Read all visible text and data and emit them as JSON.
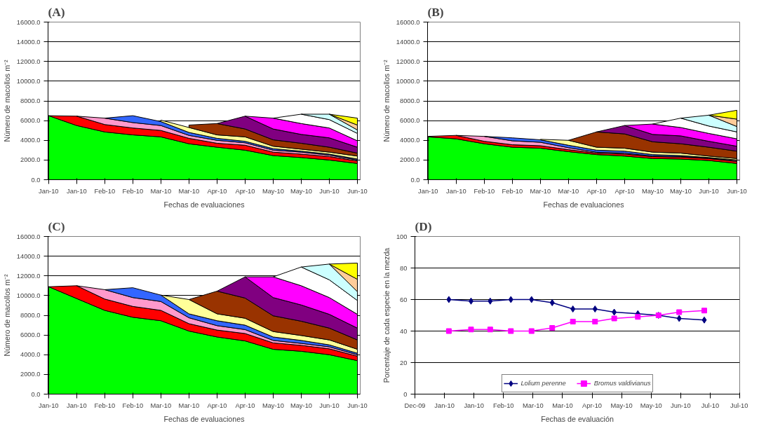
{
  "chart_data": [
    {
      "type": "area",
      "title": "(A)",
      "stacked": true,
      "xlabel": "Fechas de evaluaciones",
      "ylabel": "Número de macollos m⁻²",
      "grid": "y",
      "categories": [
        "Jan-10",
        "Jan-10",
        "Feb-10",
        "Feb-10",
        "Mar-10",
        "Mar-10",
        "Apr-10",
        "Apr-10",
        "May-10",
        "May-10",
        "Jun-10",
        "Jun-10"
      ],
      "ylim": [
        0,
        16000
      ],
      "yticks": [
        {
          "value": 0,
          "label": "0.0"
        },
        {
          "value": 2000,
          "label": "2000.0"
        },
        {
          "value": 4000,
          "label": "4000.0"
        },
        {
          "value": 6000,
          "label": "6000.0"
        },
        {
          "value": 8000,
          "label": "8000.0"
        },
        {
          "value": 10000,
          "label": "10000.0"
        },
        {
          "value": 12000,
          "label": "12000.0"
        },
        {
          "value": 14000,
          "label": "14000.0"
        },
        {
          "value": 16000,
          "label": "16000.0"
        }
      ],
      "series": [
        {
          "color": "#00ff00",
          "values": [
            6500,
            5500,
            4850,
            4550,
            4350,
            3650,
            3300,
            3000,
            2450,
            2250,
            2000,
            1650
          ]
        },
        {
          "color": "#ff0000",
          "values": [
            0,
            950,
            750,
            700,
            650,
            550,
            400,
            500,
            350,
            350,
            350,
            250
          ]
        },
        {
          "color": "#ff99cc",
          "values": [
            null,
            0,
            650,
            550,
            500,
            300,
            300,
            250,
            200,
            200,
            150,
            100
          ]
        },
        {
          "color": "#3366ff",
          "values": [
            null,
            null,
            0,
            700,
            400,
            300,
            200,
            150,
            150,
            100,
            100,
            100
          ]
        },
        {
          "color": "#ffff99",
          "values": [
            null,
            null,
            null,
            null,
            150,
            500,
            350,
            450,
            250,
            200,
            200,
            300
          ]
        },
        {
          "color": "#993300",
          "values": [
            null,
            null,
            null,
            null,
            null,
            250,
            1150,
            800,
            650,
            600,
            500,
            300
          ]
        },
        {
          "color": "#800080",
          "values": [
            null,
            null,
            null,
            null,
            null,
            null,
            0,
            1300,
            1100,
            900,
            950,
            600
          ]
        },
        {
          "color": "#ff00ff",
          "values": [
            null,
            null,
            null,
            null,
            null,
            null,
            null,
            0,
            1100,
            1100,
            1000,
            650
          ]
        },
        {
          "color": "#ffffff",
          "values": [
            null,
            null,
            null,
            null,
            null,
            null,
            null,
            null,
            0,
            950,
            850,
            750
          ]
        },
        {
          "color": "#ccffff",
          "values": [
            null,
            null,
            null,
            null,
            null,
            null,
            null,
            null,
            null,
            0,
            550,
            350
          ]
        },
        {
          "color": "#ffcc99",
          "values": [
            null,
            null,
            null,
            null,
            null,
            null,
            null,
            null,
            null,
            null,
            0,
            500
          ]
        },
        {
          "color": "#ffff00",
          "values": [
            null,
            null,
            null,
            null,
            null,
            null,
            null,
            null,
            null,
            null,
            0,
            700
          ]
        }
      ]
    },
    {
      "type": "area",
      "title": "(B)",
      "stacked": true,
      "xlabel": "Fechas de evaluaciones",
      "ylabel": "Número de macollos m⁻²",
      "grid": "y",
      "categories": [
        "Jan-10",
        "Jan-10",
        "Feb-10",
        "Feb-10",
        "Mar-10",
        "Mar-10",
        "Apr-10",
        "Apr-10",
        "May-10",
        "May-10",
        "Jun-10",
        "Jun-10"
      ],
      "ylim": [
        0,
        16000
      ],
      "yticks": [
        {
          "value": 0,
          "label": "0.0"
        },
        {
          "value": 2000,
          "label": "2000.0"
        },
        {
          "value": 4000,
          "label": "4000.0"
        },
        {
          "value": 6000,
          "label": "6000.0"
        },
        {
          "value": 8000,
          "label": "8000.0"
        },
        {
          "value": 10000,
          "label": "10000.0"
        },
        {
          "value": 12000,
          "label": "12000.0"
        },
        {
          "value": 14000,
          "label": "14000.0"
        },
        {
          "value": 16000,
          "label": "16000.0"
        }
      ],
      "series": [
        {
          "color": "#00ff00",
          "values": [
            4350,
            4150,
            3650,
            3300,
            3200,
            2850,
            2550,
            2400,
            2150,
            2100,
            1950,
            1650
          ]
        },
        {
          "color": "#ff0000",
          "values": [
            50,
            350,
            250,
            250,
            250,
            200,
            150,
            200,
            200,
            200,
            200,
            200
          ]
        },
        {
          "color": "#ff99cc",
          "values": [
            null,
            0,
            500,
            400,
            350,
            200,
            100,
            100,
            50,
            50,
            50,
            100
          ]
        },
        {
          "color": "#3366ff",
          "values": [
            null,
            null,
            0,
            300,
            250,
            250,
            200,
            200,
            150,
            100,
            50,
            50
          ]
        },
        {
          "color": "#ffff99",
          "values": [
            null,
            null,
            null,
            null,
            50,
            500,
            300,
            300,
            250,
            250,
            150,
            150
          ]
        },
        {
          "color": "#993300",
          "values": [
            null,
            null,
            null,
            null,
            null,
            0,
            1550,
            1450,
            1050,
            950,
            900,
            750
          ]
        },
        {
          "color": "#800080",
          "values": [
            null,
            null,
            null,
            null,
            null,
            null,
            0,
            850,
            750,
            800,
            600,
            500
          ]
        },
        {
          "color": "#ff00ff",
          "values": [
            null,
            null,
            null,
            null,
            null,
            null,
            null,
            0,
            1050,
            850,
            800,
            750
          ]
        },
        {
          "color": "#ffffff",
          "values": [
            null,
            null,
            null,
            null,
            null,
            null,
            null,
            null,
            0,
            950,
            750,
            700
          ]
        },
        {
          "color": "#ccffff",
          "values": [
            null,
            null,
            null,
            null,
            null,
            null,
            null,
            null,
            null,
            0,
            1100,
            550
          ]
        },
        {
          "color": "#ffcc99",
          "values": [
            null,
            null,
            null,
            null,
            null,
            null,
            null,
            null,
            null,
            null,
            0,
            750
          ]
        },
        {
          "color": "#ffff00",
          "values": [
            null,
            null,
            null,
            null,
            null,
            null,
            null,
            null,
            null,
            null,
            0,
            900
          ]
        }
      ]
    },
    {
      "type": "area",
      "title": "(C)",
      "stacked": true,
      "xlabel": "Fechas de evaluaciones",
      "ylabel": "Número de macollos m⁻²",
      "grid": "y",
      "categories": [
        "Jan-10",
        "Jan-10",
        "Feb-10",
        "Feb-10",
        "Mar-10",
        "Mar-10",
        "Apr-10",
        "Apr-10",
        "May-10",
        "May-10",
        "Jun-10",
        "Jun-10"
      ],
      "ylim": [
        0,
        16000
      ],
      "yticks": [
        {
          "value": 0,
          "label": "0.0"
        },
        {
          "value": 2000,
          "label": "2000.0"
        },
        {
          "value": 4000,
          "label": "4000.0"
        },
        {
          "value": 6000,
          "label": "6000.0"
        },
        {
          "value": 8000,
          "label": "8000.0"
        },
        {
          "value": 10000,
          "label": "10000.0"
        },
        {
          "value": 12000,
          "label": "12000.0"
        },
        {
          "value": 14000,
          "label": "14000.0"
        },
        {
          "value": 16000,
          "label": "16000.0"
        }
      ],
      "series": [
        {
          "color": "#00ff00",
          "values": [
            10900,
            9700,
            8500,
            7800,
            7450,
            6400,
            5800,
            5400,
            4550,
            4350,
            4000,
            3400
          ]
        },
        {
          "color": "#ff0000",
          "values": [
            0,
            1300,
            1150,
            1100,
            1050,
            750,
            700,
            750,
            650,
            600,
            600,
            450
          ]
        },
        {
          "color": "#ff99cc",
          "values": [
            null,
            0,
            950,
            900,
            900,
            600,
            450,
            400,
            250,
            200,
            200,
            150
          ]
        },
        {
          "color": "#3366ff",
          "values": [
            null,
            null,
            0,
            1000,
            650,
            400,
            500,
            450,
            350,
            300,
            200,
            150
          ]
        },
        {
          "color": "#ffff99",
          "values": [
            null,
            null,
            null,
            null,
            0,
            1450,
            700,
            700,
            550,
            500,
            500,
            400
          ]
        },
        {
          "color": "#993300",
          "values": [
            null,
            null,
            null,
            null,
            null,
            0,
            2300,
            2050,
            1600,
            1450,
            1200,
            950
          ]
        },
        {
          "color": "#800080",
          "values": [
            null,
            null,
            null,
            null,
            null,
            null,
            0,
            2150,
            1850,
            1650,
            1400,
            1200
          ]
        },
        {
          "color": "#ff00ff",
          "values": [
            null,
            null,
            null,
            null,
            null,
            null,
            null,
            0,
            2100,
            1950,
            1700,
            1400
          ]
        },
        {
          "color": "#ffffff",
          "values": [
            null,
            null,
            null,
            null,
            null,
            null,
            null,
            null,
            0,
            1900,
            1800,
            1400
          ]
        },
        {
          "color": "#ccffff",
          "values": [
            null,
            null,
            null,
            null,
            null,
            null,
            null,
            null,
            null,
            0,
            1600,
            900
          ]
        },
        {
          "color": "#ffcc99",
          "values": [
            null,
            null,
            null,
            null,
            null,
            null,
            null,
            null,
            null,
            null,
            0,
            1250
          ]
        },
        {
          "color": "#ffff00",
          "values": [
            null,
            null,
            null,
            null,
            null,
            null,
            null,
            null,
            null,
            null,
            0,
            1650
          ]
        }
      ]
    },
    {
      "type": "line",
      "title": "(D)",
      "xlabel": "Fechas de evaluación",
      "ylabel": "Porcentaje de cada especie en la mezda",
      "grid": "y",
      "legend": "bottom",
      "xlim": [
        "2009-12-17",
        "2010-07-25"
      ],
      "xticks": [
        {
          "value": "2009-12-17",
          "label": "Dec-09"
        },
        {
          "value": "2010-01-06",
          "label": "Jan-10"
        },
        {
          "value": "2010-01-26",
          "label": "Jan-10"
        },
        {
          "value": "2010-02-15",
          "label": "Feb-10"
        },
        {
          "value": "2010-03-07",
          "label": "Mar-10"
        },
        {
          "value": "2010-03-27",
          "label": "Mar-10"
        },
        {
          "value": "2010-04-16",
          "label": "Apr-10"
        },
        {
          "value": "2010-05-06",
          "label": "May-10"
        },
        {
          "value": "2010-05-26",
          "label": "May-10"
        },
        {
          "value": "2010-06-15",
          "label": "Jun-10"
        },
        {
          "value": "2010-07-05",
          "label": "Jul-10"
        },
        {
          "value": "2010-07-25",
          "label": "Jul-10"
        }
      ],
      "ylim": [
        0,
        100
      ],
      "yticks": [
        0,
        20,
        40,
        60,
        80,
        100
      ],
      "x": [
        "2010-01-09",
        "2010-01-24",
        "2010-02-06",
        "2010-02-20",
        "2010-03-06",
        "2010-03-20",
        "2010-04-03",
        "2010-04-18",
        "2010-05-01",
        "2010-05-17",
        "2010-05-31",
        "2010-06-14",
        "2010-07-01"
      ],
      "series": [
        {
          "name": "Lolium perenne",
          "color": "#000080",
          "marker": "diamond",
          "values": [
            60,
            59,
            59,
            60,
            60,
            58,
            54,
            54,
            52,
            51,
            50,
            48,
            47
          ]
        },
        {
          "name": "Bromus valdivianus",
          "color": "#ff00ff",
          "marker": "square",
          "values": [
            40,
            41,
            41,
            40,
            40,
            42,
            46,
            46,
            48,
            49,
            50,
            52,
            53
          ]
        }
      ]
    }
  ]
}
